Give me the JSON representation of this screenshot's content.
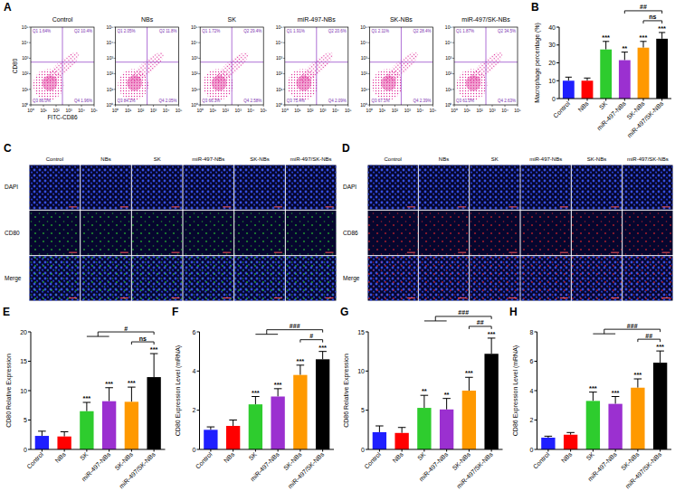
{
  "panel_letters": [
    "A",
    "B",
    "C",
    "D",
    "E",
    "F",
    "G",
    "H"
  ],
  "flow": {
    "log": true,
    "x_label": "FITC-CD86",
    "y_label": "CD80",
    "xlim": [
      1,
      100000
    ],
    "ylim": [
      1,
      100000
    ],
    "xticks": [
      {
        "value": 1,
        "label": "10⁰"
      },
      {
        "value": 10,
        "label": "10¹"
      },
      {
        "value": 100,
        "label": "10²"
      },
      {
        "value": 1000,
        "label": "10³"
      },
      {
        "value": 10000,
        "label": "10⁴"
      },
      {
        "value": 100000,
        "label": "10⁵"
      }
    ],
    "yticks": [
      {
        "value": 1,
        "label": "10⁰"
      },
      {
        "value": 10,
        "label": "10¹"
      },
      {
        "value": 100,
        "label": "10²"
      },
      {
        "value": 1000,
        "label": "10³"
      },
      {
        "value": 10000,
        "label": "10⁴"
      },
      {
        "value": 100000,
        "label": "10⁵"
      }
    ],
    "panels": [
      {
        "title": "Control",
        "quadrants": [
          "Q1 1.64%",
          "Q2 10.4%",
          "Q3 86.0%",
          "Q4 1.96%"
        ]
      },
      {
        "title": "NBs",
        "quadrants": [
          "Q1 2.05%",
          "Q2 11.8%",
          "Q3 84.1%",
          "Q4 2.05%"
        ]
      },
      {
        "title": "SK",
        "quadrants": [
          "Q1 1.72%",
          "Q2 29.4%",
          "Q3 66.3%",
          "Q4 2.58%"
        ]
      },
      {
        "title": "miR-497-NBs",
        "quadrants": [
          "Q1 1.91%",
          "Q2 20.6%",
          "Q3 75.4%",
          "Q4 2.09%"
        ]
      },
      {
        "title": "SK-NBs",
        "quadrants": [
          "Q1 2.11%",
          "Q2 28.4%",
          "Q3 67.1%",
          "Q4 2.39%"
        ]
      },
      {
        "title": "miR-497/SK-NBs",
        "quadrants": [
          "Q1 1.87%",
          "Q2 34.5%",
          "Q3 61.0%",
          "Q4 2.63%"
        ]
      }
    ]
  },
  "microscopy": [
    {
      "columns": [
        "Control",
        "NBs",
        "SK",
        "miR-497-NBs",
        "SK-NBs",
        "miR-497/SK-NBs"
      ],
      "rows": [
        "DAPI",
        "CD80",
        "Merge"
      ],
      "color": "#2ee02e"
    },
    {
      "columns": [
        "Control",
        "NBs",
        "SK",
        "miR-497-NBs",
        "SK-NBs",
        "miR-497/SK-NBs"
      ],
      "rows": [
        "DAPI",
        "CD86",
        "Merge"
      ],
      "color": "#ff2a2a"
    }
  ],
  "chart_data": [
    {
      "type": "bar",
      "y_label": "Macrophage percentage (%)",
      "categories": [
        "Control",
        "NBs",
        "SK",
        "miR-497-NBs",
        "SK-NBs",
        "miR-497/SK-NBs"
      ],
      "values": [
        10,
        10,
        27.5,
        21.5,
        28.5,
        33.5
      ],
      "errors": [
        2,
        1.5,
        4.5,
        4.5,
        3.5,
        3.5
      ],
      "colors": [
        "#1f1fff",
        "#ff0000",
        "#2ecc2e",
        "#9b30d0",
        "#ff9900",
        "#000000"
      ],
      "ylim": [
        0,
        40
      ],
      "yticks": [
        0,
        10,
        20,
        30,
        40
      ],
      "significance": [
        null,
        null,
        "***",
        "**",
        "***",
        "***"
      ],
      "brackets": [
        {
          "from": [
            4
          ],
          "to": 5,
          "label": "ns"
        },
        {
          "from": [
            3
          ],
          "to": 5,
          "label": "##"
        }
      ]
    },
    {
      "type": "bar",
      "y_label": "CD80 Relative Expression",
      "categories": [
        "Control",
        "NBs",
        "SK",
        "miR-497-NBs",
        "SK-NBs",
        "miR-497/SK-NBs"
      ],
      "values": [
        2.3,
        2.2,
        6.5,
        8.2,
        8.1,
        12.3
      ],
      "errors": [
        0.8,
        0.8,
        1.5,
        2.3,
        2.5,
        4
      ],
      "colors": [
        "#1f1fff",
        "#ff0000",
        "#2ecc2e",
        "#9b30d0",
        "#ff9900",
        "#000000"
      ],
      "ylim": [
        0,
        20
      ],
      "yticks": [
        0,
        5,
        10,
        15,
        20
      ],
      "significance": [
        null,
        null,
        "***",
        "***",
        "***",
        "***"
      ],
      "brackets": [
        {
          "from": [
            4
          ],
          "to": 5,
          "label": "ns"
        },
        {
          "from": [
            2,
            3
          ],
          "to": 5,
          "label": "#"
        }
      ]
    },
    {
      "type": "bar",
      "y_label": "CD80 Expression Level (mRNA)",
      "categories": [
        "Control",
        "NBs",
        "SK",
        "miR-497-NBs",
        "SK-NBs",
        "miR-497/SK-NBs"
      ],
      "values": [
        1,
        1.2,
        2.3,
        2.7,
        3.8,
        4.6
      ],
      "errors": [
        0.15,
        0.3,
        0.4,
        0.4,
        0.5,
        0.4
      ],
      "colors": [
        "#1f1fff",
        "#ff0000",
        "#2ecc2e",
        "#9b30d0",
        "#ff9900",
        "#000000"
      ],
      "ylim": [
        0,
        6
      ],
      "yticks": [
        0,
        2,
        4,
        6
      ],
      "significance": [
        null,
        null,
        "***",
        "***",
        "***",
        "***"
      ],
      "brackets": [
        {
          "from": [
            4
          ],
          "to": 5,
          "label": "#"
        },
        {
          "from": [
            2,
            3
          ],
          "to": 5,
          "label": "###"
        }
      ]
    },
    {
      "type": "bar",
      "y_label": "CD86 Relative Expression",
      "categories": [
        "Control",
        "NBs",
        "SK",
        "miR-497-NBs",
        "SK-NBs",
        "miR-497/SK-NBs"
      ],
      "values": [
        2.2,
        2.1,
        5.3,
        5.1,
        7.5,
        12.2
      ],
      "errors": [
        0.8,
        0.7,
        1.6,
        1.4,
        1.7,
        2
      ],
      "colors": [
        "#1f1fff",
        "#ff0000",
        "#2ecc2e",
        "#9b30d0",
        "#ff9900",
        "#000000"
      ],
      "ylim": [
        0,
        15
      ],
      "yticks": [
        0,
        5,
        10,
        15
      ],
      "significance": [
        null,
        null,
        "**",
        "**",
        "***",
        "***"
      ],
      "brackets": [
        {
          "from": [
            4
          ],
          "to": 5,
          "label": "##"
        },
        {
          "from": [
            2,
            3
          ],
          "to": 5,
          "label": "###"
        }
      ]
    },
    {
      "type": "bar",
      "y_label": "CD86 Expression Level (mRNA)",
      "categories": [
        "Control",
        "NBs",
        "SK",
        "miR-497-NBs",
        "SK-NBs",
        "miR-497/SK-NBs"
      ],
      "values": [
        0.8,
        1,
        3.3,
        3.1,
        4.2,
        5.9
      ],
      "errors": [
        0.1,
        0.15,
        0.6,
        0.5,
        0.6,
        0.8
      ],
      "colors": [
        "#1f1fff",
        "#ff0000",
        "#2ecc2e",
        "#9b30d0",
        "#ff9900",
        "#000000"
      ],
      "ylim": [
        0,
        8
      ],
      "yticks": [
        0,
        2,
        4,
        6,
        8
      ],
      "significance": [
        null,
        null,
        "***",
        "***",
        "***",
        "***"
      ],
      "brackets": [
        {
          "from": [
            4
          ],
          "to": 5,
          "label": "##"
        },
        {
          "from": [
            2,
            3
          ],
          "to": 5,
          "label": "###"
        }
      ]
    }
  ]
}
